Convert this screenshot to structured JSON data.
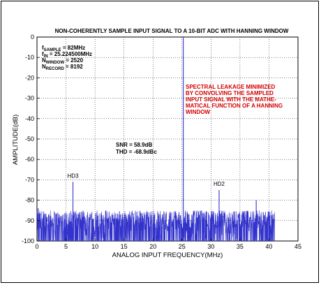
{
  "chart_data": {
    "type": "line",
    "title": "NON-COHERENTLY SAMPLE INPUT SIGNAL TO A 10-BIT ADC WITH HANNING WINDOW",
    "xlabel": "ANALOG INPUT FREQUENCY(MHz)",
    "ylabel": "AMPLITUDE(dB)",
    "xlim": [
      0,
      45
    ],
    "ylim": [
      -100,
      0
    ],
    "xticks": [
      "0",
      "5",
      "10",
      "15",
      "20",
      "25",
      "30",
      "35",
      "40",
      "45"
    ],
    "yticks": [
      "0",
      "-10",
      "-20",
      "-30",
      "-40",
      "-50",
      "-60",
      "-70",
      "-80",
      "-90",
      "-100"
    ],
    "grid": true,
    "series_color": "#3333cc",
    "noise_floor": {
      "x_range": [
        0,
        41
      ],
      "typical_db": [
        -100,
        -85
      ]
    },
    "peaks": [
      {
        "x": 25.224,
        "y": 0,
        "label": ""
      },
      {
        "x": 6.2,
        "y": -71,
        "label": "HD3"
      },
      {
        "x": 31.4,
        "y": -75,
        "label": "HD2"
      },
      {
        "x": 37.8,
        "y": -80,
        "label": ""
      },
      {
        "x": 0.2,
        "y": -84,
        "label": ""
      }
    ],
    "params": [
      {
        "sym": "f",
        "sub": "SAMPLE",
        "value": " = 82MHz"
      },
      {
        "sym": "f",
        "sub": "IN",
        "value": " = 25.224500MHz"
      },
      {
        "sym": "N",
        "sub": "WINDOW",
        "value": " = 2520"
      },
      {
        "sym": "N",
        "sub": "RECORD",
        "value": " = 8192"
      }
    ],
    "metrics": [
      "SNR = 58.9dB",
      "THD = -68.9dBc"
    ],
    "note_lines": [
      "SPECTRAL LEAKAGE MINIMIZED",
      "BY CONVOLVING THE SAMPLED",
      "INPUT SIGNAL WITH THE MATHE-",
      "MATICAL FUNCTION OF A HANNING",
      "WINDOW"
    ],
    "note_color": "#d40000"
  }
}
